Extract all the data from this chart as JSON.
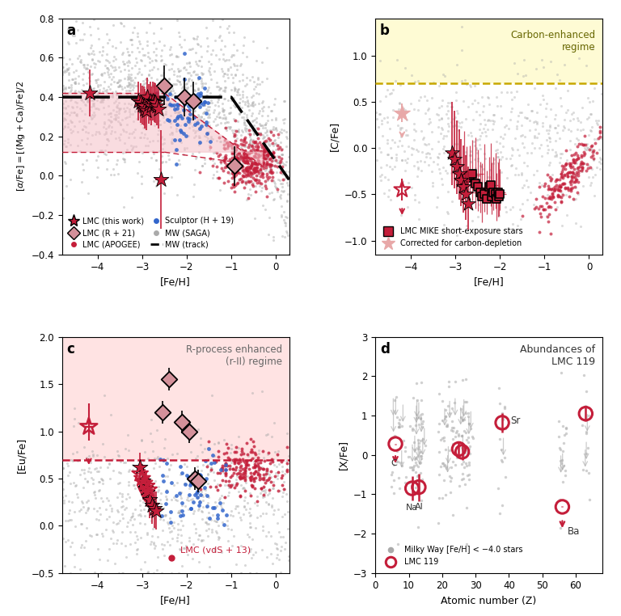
{
  "colors": {
    "crimson": "#C41E3A",
    "gray": "#AAAAAA",
    "blue": "#3366CC",
    "black": "#111111",
    "pink_diamond": "#D4909A",
    "pink_star": "#E8A8A8",
    "pink_region": "#F5C0C8",
    "yellow_region": "#FEFBD0",
    "yellow_dashed": "#C8A800",
    "red_dashed": "#C41E3A"
  },
  "panel_d": {
    "lmc119": {
      "Z": [
        6,
        11,
        13,
        25,
        26,
        38,
        56,
        63
      ],
      "XFe": [
        0.3,
        -0.85,
        -0.8,
        0.15,
        0.1,
        0.8,
        -1.3,
        1.05
      ],
      "ye": [
        0.25,
        0.25,
        0.35,
        0.2,
        0.2,
        0.25,
        0.3,
        0.2
      ],
      "xe": [
        0.0,
        0.0,
        0.0,
        0.0,
        0.0,
        0.0,
        0.0,
        0.0
      ],
      "ul": [
        true,
        false,
        false,
        false,
        false,
        false,
        true,
        false
      ],
      "labels": [
        "C",
        "Na",
        "Al",
        "",
        "",
        "Sr",
        "Ba",
        ""
      ]
    }
  }
}
